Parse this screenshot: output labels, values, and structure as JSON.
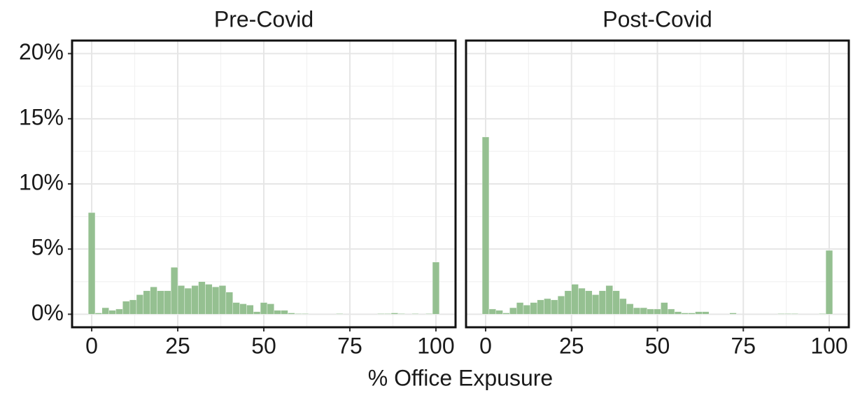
{
  "xlabel": "% Office Expusure",
  "chart_data": [
    {
      "type": "histogram",
      "title": "Pre-Covid",
      "color": "#8fbd8b",
      "bins": [
        -1,
        1,
        3,
        5,
        7,
        9,
        11,
        13,
        15,
        17,
        19,
        21,
        23,
        25,
        27,
        29,
        31,
        33,
        35,
        37,
        39,
        41,
        43,
        45,
        47,
        49,
        51,
        53,
        55,
        57,
        59,
        61,
        63,
        65,
        67,
        69,
        71,
        73,
        75,
        77,
        79,
        81,
        83,
        85,
        87,
        89,
        91,
        93,
        95,
        97,
        99,
        101
      ],
      "values": [
        7.8,
        0.1,
        0.5,
        0.3,
        0.4,
        1.0,
        1.1,
        1.5,
        1.8,
        2.1,
        1.8,
        1.8,
        3.6,
        2.2,
        2.0,
        2.2,
        2.5,
        2.3,
        2.1,
        2.2,
        1.7,
        0.9,
        0.8,
        0.7,
        0.2,
        0.9,
        0.8,
        0.3,
        0.3,
        0.1,
        0.05,
        0.05,
        0,
        0,
        0,
        0,
        0.05,
        0,
        0,
        0,
        0,
        0,
        0.05,
        0.05,
        0.1,
        0.05,
        0,
        0.05,
        0,
        0.05,
        4.0
      ],
      "xlim": [
        -5.7,
        105.7
      ],
      "ylim": [
        -1,
        21
      ],
      "xticks": [
        0,
        25,
        50,
        75,
        100
      ],
      "yticks": [
        {
          "value": 0,
          "label": "0%"
        },
        {
          "value": 5,
          "label": "5%"
        },
        {
          "value": 10,
          "label": "10%"
        },
        {
          "value": 15,
          "label": "15%"
        },
        {
          "value": 20,
          "label": "20%"
        }
      ],
      "grid": true
    },
    {
      "type": "histogram",
      "title": "Post-Covid",
      "color": "#8fbd8b",
      "bins": [
        -1,
        1,
        3,
        5,
        7,
        9,
        11,
        13,
        15,
        17,
        19,
        21,
        23,
        25,
        27,
        29,
        31,
        33,
        35,
        37,
        39,
        41,
        43,
        45,
        47,
        49,
        51,
        53,
        55,
        57,
        59,
        61,
        63,
        65,
        67,
        69,
        71,
        73,
        75,
        77,
        79,
        81,
        83,
        85,
        87,
        89,
        91,
        93,
        95,
        97,
        99,
        101
      ],
      "values": [
        13.6,
        0.4,
        0.3,
        0.1,
        0.5,
        0.9,
        0.7,
        0.9,
        1.1,
        1.2,
        1.1,
        1.4,
        1.8,
        2.3,
        2.0,
        1.8,
        1.5,
        1.8,
        2.2,
        1.8,
        1.2,
        0.8,
        0.5,
        0.5,
        0.4,
        0.4,
        0.9,
        0.4,
        0.2,
        0.1,
        0.1,
        0.2,
        0.2,
        0,
        0,
        0,
        0.1,
        0,
        0,
        0,
        0,
        0,
        0,
        0.05,
        0.05,
        0.05,
        0,
        0,
        0,
        0.05,
        4.9
      ],
      "xlim": [
        -5.7,
        105.7
      ],
      "ylim": [
        -1,
        21
      ],
      "xticks": [
        0,
        25,
        50,
        75,
        100
      ],
      "yticks": [
        0,
        5,
        10,
        15,
        20
      ],
      "grid": true
    }
  ]
}
